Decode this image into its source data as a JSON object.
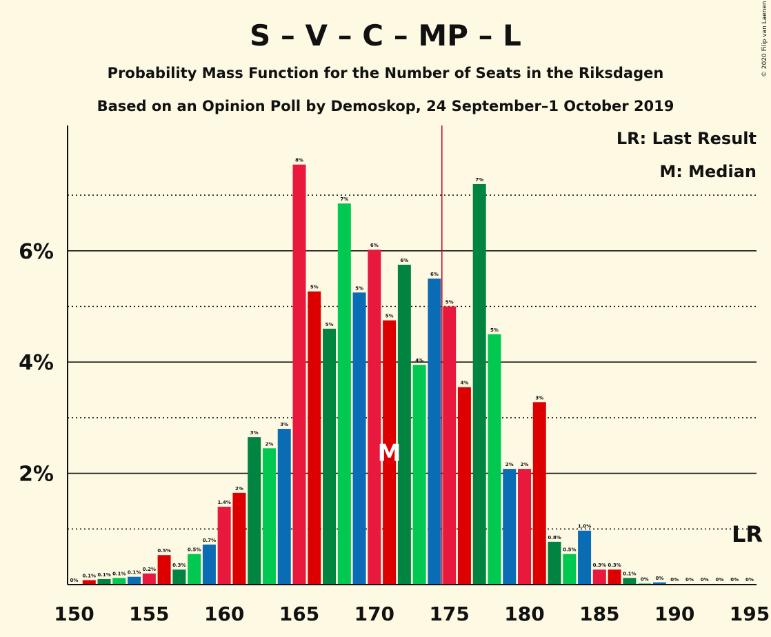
{
  "title": "S – V – C – MP – L",
  "subtitle1": "Probability Mass Function for the Number of Seats in the Riksdagen",
  "subtitle2": "Based on an Opinion Poll by Demoskop, 24 September–1 October 2019",
  "legend_lr": "LR: Last Result",
  "legend_median": "M: Median",
  "lr_marker": "LR",
  "median_marker": "M",
  "copyright": "© 2020 Filip van Laenen",
  "colors": {
    "background": "#fef9e3",
    "palette": [
      "#e8193c",
      "#dd0000",
      "#00843f",
      "#00c850",
      "#0a6cb4"
    ],
    "last_result_line": "#c8001e"
  },
  "chart_data": {
    "type": "bar",
    "title": "S – V – C – MP – L",
    "x": [
      150,
      151,
      152,
      153,
      154,
      155,
      156,
      157,
      158,
      159,
      160,
      161,
      162,
      163,
      164,
      165,
      166,
      167,
      168,
      169,
      170,
      171,
      172,
      173,
      174,
      175,
      176,
      177,
      178,
      179,
      180,
      181,
      182,
      183,
      184,
      185,
      186,
      187,
      188,
      189,
      190,
      191,
      192,
      193,
      194,
      195
    ],
    "values": [
      0,
      0.08,
      0.1,
      0.12,
      0.14,
      0.2,
      0.53,
      0.27,
      0.55,
      0.72,
      1.4,
      1.65,
      2.65,
      2.45,
      2.8,
      7.55,
      5.27,
      4.6,
      6.85,
      5.25,
      6.02,
      4.75,
      5.75,
      3.95,
      5.5,
      5.0,
      3.55,
      7.2,
      4.5,
      2.08,
      2.08,
      3.28,
      0.77,
      0.55,
      0.97,
      0.27,
      0.27,
      0.12,
      0.02,
      0.04,
      0.01,
      0.01,
      0.01,
      0.01,
      0.01,
      0.01
    ],
    "labels": [
      "0%",
      "0.1%",
      "0.1%",
      "0.1%",
      "0.1%",
      "0.2%",
      "0.5%",
      "0.3%",
      "0.5%",
      "0.7%",
      "1.4%",
      "2%",
      "3%",
      "2%",
      "3%",
      "8%",
      "5%",
      "5%",
      "7%",
      "5%",
      "6%",
      "5%",
      "6%",
      "4%",
      "6%",
      "5%",
      "4%",
      "7%",
      "5%",
      "2%",
      "2%",
      "3%",
      "0.8%",
      "0.5%",
      "1.0%",
      "0.3%",
      "0.3%",
      "0.1%",
      "0%",
      "0%",
      "0%",
      "0%",
      "0%",
      "0%",
      "0%",
      "0%"
    ],
    "x_ticks": [
      "150",
      "155",
      "160",
      "165",
      "170",
      "175",
      "180",
      "185",
      "190",
      "195"
    ],
    "y_ticks": [
      "2%",
      "4%",
      "6%"
    ],
    "xlim": [
      150,
      195
    ],
    "ylim": [
      0,
      8.2
    ],
    "median": 171,
    "last_result": 175,
    "grid": "solid lines at 2%, 4%, 6%; dotted lines at 1%, 3%, 5%, 7%",
    "legend": "top-right"
  }
}
